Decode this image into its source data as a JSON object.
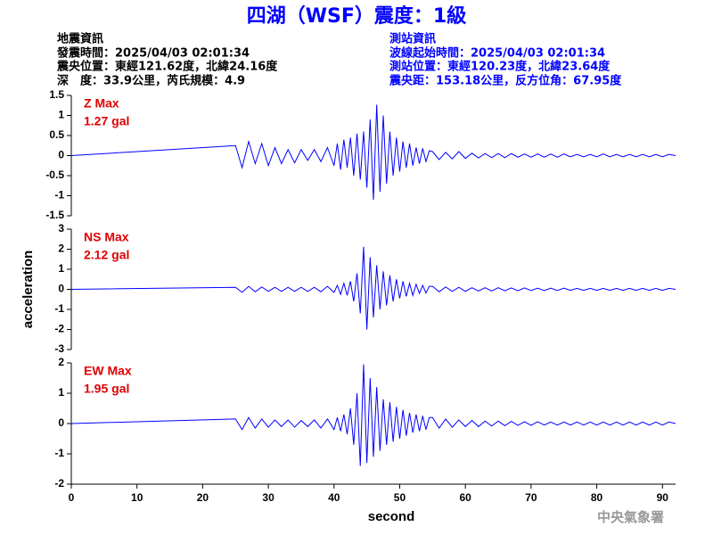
{
  "header": {
    "title": "四湖（WSF）震度：1級",
    "left": [
      "地震資訊",
      "發震時間：2025/04/03 02:01:34",
      "震央位置：東經121.62度，北緯24.16度",
      "深　度：33.9公里，芮氏規模：4.9"
    ],
    "right": [
      "測站資訊",
      "波線起始時間：2025/04/03 02:01:34",
      "測站位置：東經120.23度，北緯23.64度",
      "震央距：153.18公里，反方位角：67.95度"
    ],
    "footer": "中央氣象署"
  },
  "chart_data": [
    {
      "type": "line",
      "annotation": [
        "Z Max",
        "1.27 gal"
      ],
      "color": "#0000ff",
      "xlim": [
        0,
        92
      ],
      "ylim": [
        -1.5,
        1.5
      ],
      "yticks": [
        -1.5,
        -1,
        -0.5,
        0,
        0.5,
        1,
        1.5
      ],
      "x": [
        0,
        25,
        26,
        27,
        28,
        29,
        30,
        31,
        32,
        33,
        34,
        35,
        36,
        37,
        38,
        39,
        40,
        40.5,
        41,
        41.5,
        42,
        42.5,
        43,
        43.5,
        44,
        44.5,
        45,
        45.5,
        46,
        46.5,
        47,
        47.5,
        48,
        48.5,
        49,
        49.5,
        50,
        50.5,
        51,
        51.5,
        52,
        52.5,
        53,
        53.5,
        54,
        54.5,
        55,
        56,
        57,
        58,
        59,
        60,
        61,
        62,
        63,
        64,
        65,
        66,
        67,
        68,
        69,
        70,
        71,
        72,
        73,
        74,
        75,
        76,
        77,
        78,
        79,
        80,
        81,
        82,
        83,
        84,
        85,
        86,
        87,
        88,
        89,
        90,
        91,
        92
      ],
      "values": [
        0,
        0.25,
        -0.3,
        0.35,
        -0.2,
        0.3,
        -0.25,
        0.2,
        -0.2,
        0.15,
        -0.18,
        0.15,
        -0.12,
        0.15,
        -0.15,
        0.2,
        -0.25,
        0.3,
        -0.35,
        0.4,
        -0.3,
        0.45,
        -0.5,
        0.55,
        -0.6,
        0.6,
        -0.8,
        0.9,
        -1.1,
        1.27,
        -0.9,
        1.0,
        -0.7,
        0.6,
        -0.5,
        0.45,
        -0.4,
        0.35,
        -0.3,
        0.3,
        -0.25,
        0.2,
        -0.2,
        0.18,
        -0.15,
        0.12,
        0.1,
        -0.1,
        0.08,
        -0.08,
        0.1,
        -0.07,
        0.06,
        -0.06,
        0.05,
        -0.05,
        0.05,
        -0.05,
        0.05,
        -0.04,
        0.04,
        -0.04,
        0.04,
        -0.04,
        0.04,
        -0.04,
        0.04,
        -0.03,
        0.03,
        -0.03,
        0.03,
        -0.03,
        0.04,
        -0.03,
        0.03,
        -0.03,
        0.03,
        -0.03,
        0.03,
        -0.03,
        0.03,
        -0.03,
        0.03,
        0
      ]
    },
    {
      "type": "line",
      "annotation": [
        "NS Max",
        "2.12 gal"
      ],
      "color": "#0000ff",
      "ylabel": "acceleration",
      "xlim": [
        0,
        92
      ],
      "ylim": [
        -3,
        3
      ],
      "yticks": [
        -3,
        -2,
        -1,
        0,
        1,
        2,
        3
      ],
      "x": [
        0,
        25,
        26,
        27,
        28,
        29,
        30,
        31,
        32,
        33,
        34,
        35,
        36,
        37,
        38,
        39,
        40,
        40.5,
        41,
        41.5,
        42,
        42.5,
        43,
        43.5,
        44,
        44.5,
        45,
        45.5,
        46,
        46.5,
        47,
        47.5,
        48,
        48.5,
        49,
        49.5,
        50,
        50.5,
        51,
        51.5,
        52,
        52.5,
        53,
        53.5,
        54,
        54.5,
        55,
        56,
        57,
        58,
        59,
        60,
        61,
        62,
        63,
        64,
        65,
        66,
        67,
        68,
        69,
        70,
        71,
        72,
        73,
        74,
        75,
        76,
        77,
        78,
        79,
        80,
        81,
        82,
        83,
        84,
        85,
        86,
        87,
        88,
        89,
        90,
        91,
        92
      ],
      "values": [
        0,
        0.1,
        -0.15,
        0.15,
        -0.12,
        0.12,
        -0.1,
        0.1,
        -0.1,
        0.1,
        -0.1,
        0.1,
        -0.1,
        0.1,
        -0.12,
        0.15,
        -0.15,
        0.2,
        -0.25,
        0.3,
        -0.3,
        0.4,
        -0.6,
        0.8,
        -1.2,
        2.12,
        -2.0,
        1.6,
        -1.4,
        1.2,
        -1.0,
        0.9,
        -0.8,
        0.7,
        -0.6,
        0.5,
        -0.45,
        0.4,
        -0.35,
        0.3,
        -0.3,
        0.25,
        -0.2,
        0.2,
        -0.18,
        0.15,
        0.15,
        -0.12,
        0.12,
        -0.1,
        0.1,
        -0.1,
        0.08,
        -0.08,
        0.08,
        -0.08,
        0.08,
        -0.07,
        0.07,
        -0.07,
        0.07,
        -0.06,
        0.06,
        -0.06,
        0.06,
        -0.06,
        0.06,
        -0.05,
        0.05,
        -0.05,
        0.05,
        -0.05,
        0.05,
        -0.05,
        0.05,
        -0.05,
        0.05,
        -0.05,
        0.05,
        -0.05,
        0.05,
        -0.05,
        0.05,
        0
      ]
    },
    {
      "type": "line",
      "annotation": [
        "EW Max",
        "1.95 gal"
      ],
      "color": "#0000ff",
      "xlabel": "second",
      "xlim": [
        0,
        92
      ],
      "xticks": [
        0,
        10,
        20,
        30,
        40,
        50,
        60,
        70,
        80,
        90
      ],
      "ylim": [
        -2,
        2
      ],
      "yticks": [
        -2,
        -1,
        0,
        1,
        2
      ],
      "x": [
        0,
        25,
        26,
        27,
        28,
        29,
        30,
        31,
        32,
        33,
        34,
        35,
        36,
        37,
        38,
        39,
        40,
        40.5,
        41,
        41.5,
        42,
        42.5,
        43,
        43.5,
        44,
        44.5,
        45,
        45.5,
        46,
        46.5,
        47,
        47.5,
        48,
        48.5,
        49,
        49.5,
        50,
        50.5,
        51,
        51.5,
        52,
        52.5,
        53,
        53.5,
        54,
        54.5,
        55,
        56,
        57,
        58,
        59,
        60,
        61,
        62,
        63,
        64,
        65,
        66,
        67,
        68,
        69,
        70,
        71,
        72,
        73,
        74,
        75,
        76,
        77,
        78,
        79,
        80,
        81,
        82,
        83,
        84,
        85,
        86,
        87,
        88,
        89,
        90,
        91,
        92
      ],
      "values": [
        0,
        0.15,
        -0.2,
        0.2,
        -0.15,
        0.15,
        -0.12,
        0.12,
        -0.1,
        0.12,
        -0.12,
        0.1,
        -0.1,
        0.12,
        -0.15,
        0.15,
        -0.2,
        0.2,
        -0.25,
        0.3,
        -0.35,
        0.5,
        -0.7,
        1.0,
        -1.4,
        1.95,
        -1.3,
        1.5,
        -1.1,
        1.2,
        -0.9,
        0.8,
        -0.7,
        0.7,
        -0.6,
        0.55,
        -0.5,
        0.45,
        -0.4,
        0.35,
        -0.3,
        0.3,
        -0.25,
        0.25,
        -0.2,
        0.2,
        0.2,
        -0.15,
        0.15,
        -0.12,
        0.12,
        -0.1,
        0.1,
        -0.1,
        0.08,
        -0.08,
        0.08,
        -0.07,
        0.07,
        -0.06,
        0.06,
        -0.06,
        0.06,
        -0.05,
        0.05,
        -0.05,
        0.05,
        -0.05,
        0.05,
        -0.05,
        0.05,
        -0.05,
        0.05,
        -0.05,
        0.05,
        -0.05,
        0.05,
        -0.05,
        0.05,
        -0.05,
        0.05,
        -0.05,
        0.05,
        0
      ]
    }
  ]
}
